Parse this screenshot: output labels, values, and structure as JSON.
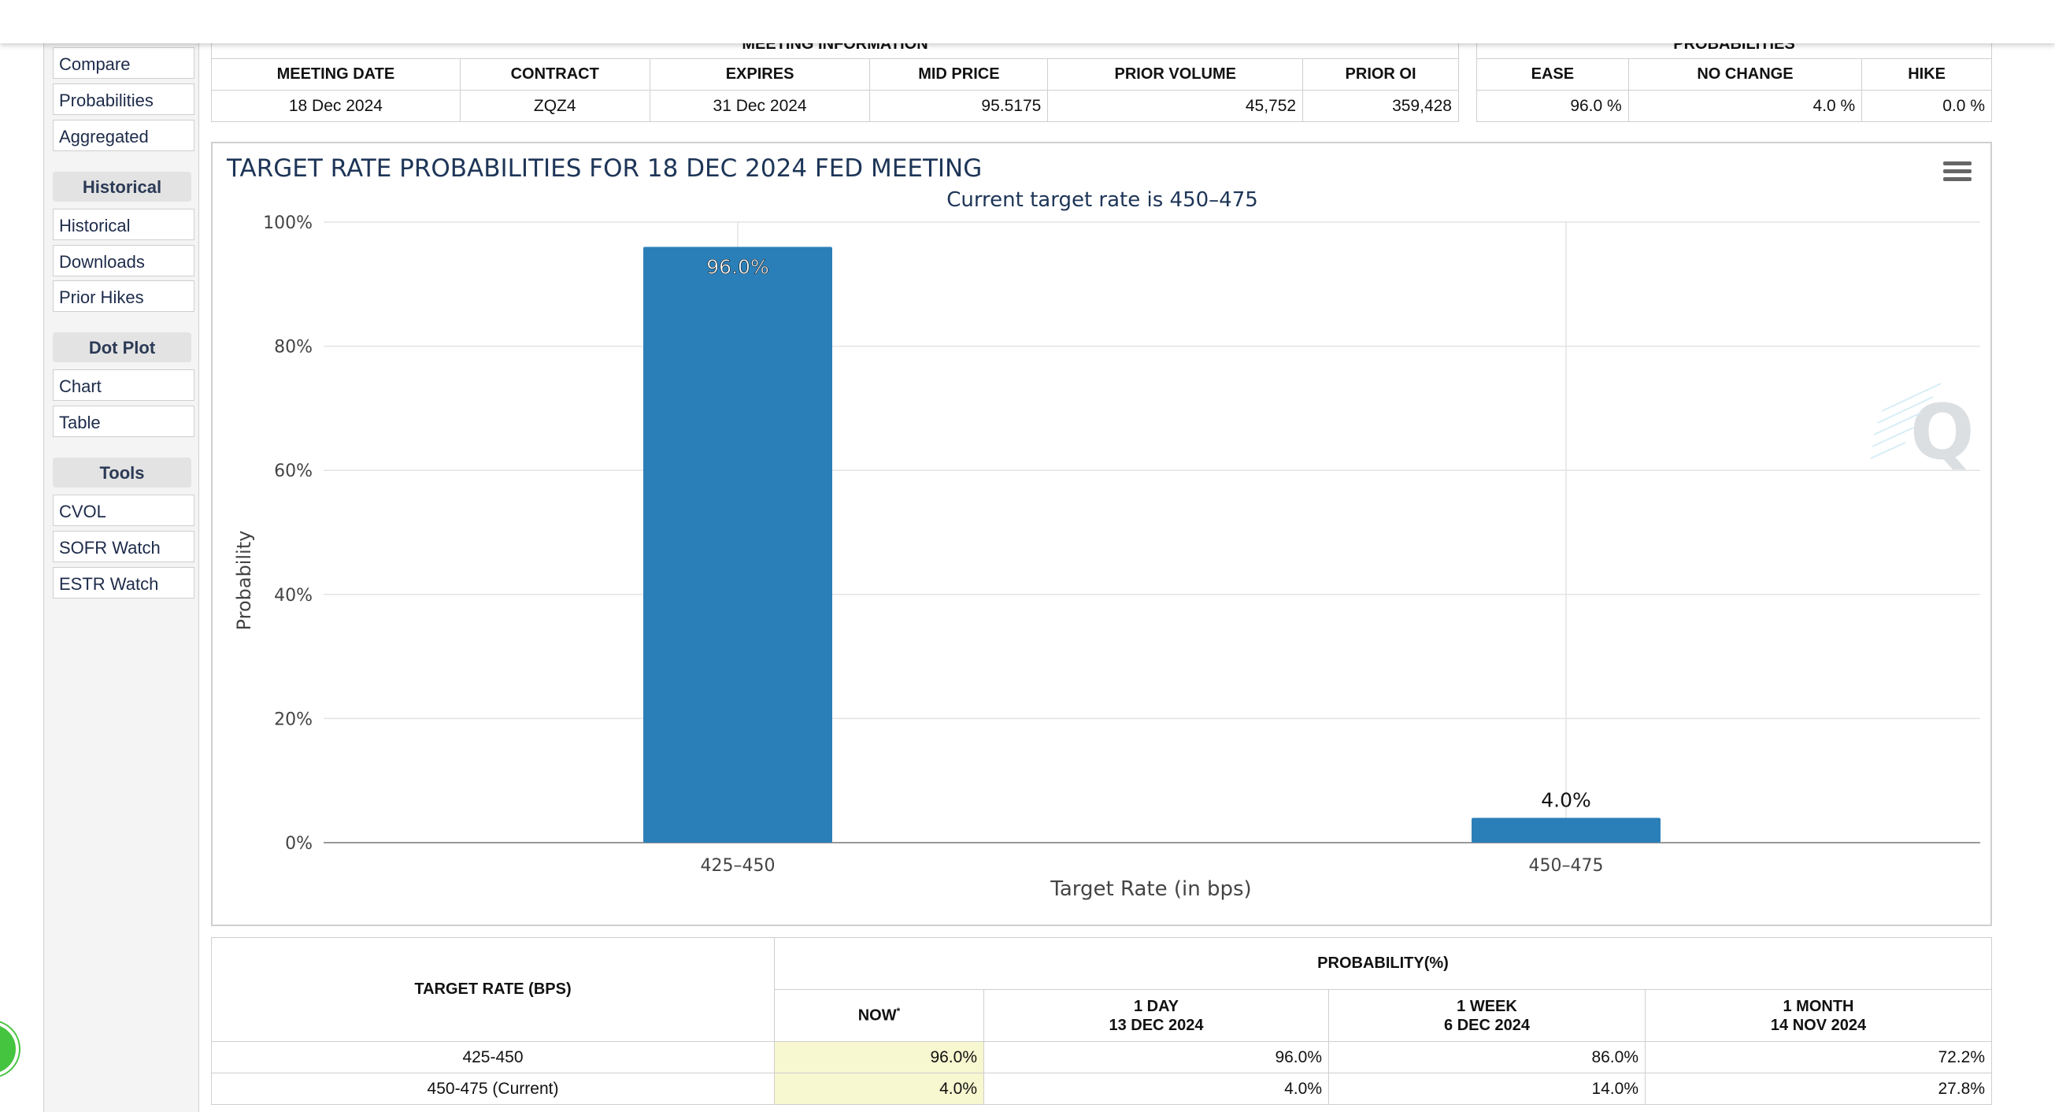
{
  "sidebar": {
    "top_items": [
      "Compare",
      "Probabilities",
      "Aggregated"
    ],
    "sections": [
      {
        "title": "Historical",
        "items": [
          "Historical",
          "Downloads",
          "Prior Hikes"
        ]
      },
      {
        "title": "Dot Plot",
        "items": [
          "Chart",
          "Table"
        ]
      },
      {
        "title": "Tools",
        "items": [
          "CVOL",
          "SOFR Watch",
          "ESTR Watch"
        ]
      }
    ]
  },
  "meeting_info": {
    "title": "MEETING INFORMATION",
    "headers": [
      "MEETING DATE",
      "CONTRACT",
      "EXPIRES",
      "MID PRICE",
      "PRIOR VOLUME",
      "PRIOR OI"
    ],
    "values": [
      "18 Dec 2024",
      "ZQZ4",
      "31 Dec 2024",
      "95.5175",
      "45,752",
      "359,428"
    ]
  },
  "probabilities_summary": {
    "title": "PROBABILITIES",
    "headers": [
      "EASE",
      "NO CHANGE",
      "HIKE"
    ],
    "values": [
      "96.0 %",
      "4.0 %",
      "0.0 %"
    ]
  },
  "chart_data": {
    "type": "bar",
    "title": "TARGET RATE PROBABILITIES FOR 18 DEC 2024 FED MEETING",
    "subtitle": "Current target rate is 450–475",
    "xlabel": "Target Rate (in bps)",
    "ylabel": "Probability",
    "categories": [
      "425–450",
      "450–475"
    ],
    "values": [
      96.0,
      4.0
    ],
    "data_labels": [
      "96.0%",
      "4.0%"
    ],
    "ylim": [
      0,
      100
    ],
    "yticks": [
      0,
      20,
      40,
      60,
      80,
      100
    ],
    "ytick_labels": [
      "0%",
      "20%",
      "40%",
      "60%",
      "80%",
      "100%"
    ],
    "grid": true,
    "legend": "none",
    "bar_color": "#2b7fb8"
  },
  "prob_table": {
    "target_header": "TARGET RATE (BPS)",
    "group_header": "PROBABILITY(%)",
    "columns": [
      {
        "line1": "NOW",
        "sup": "*",
        "line2": ""
      },
      {
        "line1": "1 DAY",
        "line2": "13 DEC 2024"
      },
      {
        "line1": "1 WEEK",
        "line2": "6 DEC 2024"
      },
      {
        "line1": "1 MONTH",
        "line2": "14 NOV 2024"
      }
    ],
    "rows": [
      {
        "rate": "425-450",
        "values": [
          "96.0%",
          "96.0%",
          "86.0%",
          "72.2%"
        ]
      },
      {
        "rate": "450-475 (Current)",
        "values": [
          "4.0%",
          "4.0%",
          "14.0%",
          "27.8%"
        ]
      }
    ]
  },
  "colors": {
    "accent": "#2b7fb8",
    "now_highlight": "#f7f7d0",
    "title_text": "#1d3557"
  },
  "icons": {
    "chart_menu": "hamburger-menu-icon",
    "watermark": "q-watermark-logo",
    "fab": "whatsapp-icon"
  }
}
